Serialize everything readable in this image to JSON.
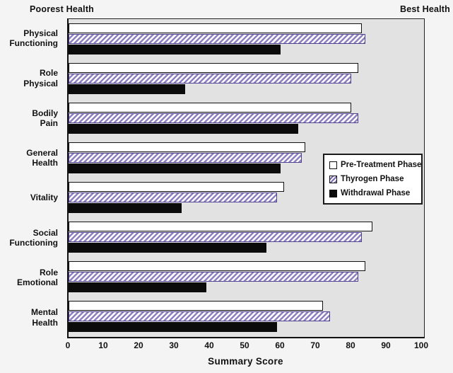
{
  "page": {
    "top_left_label": "Poorest Health",
    "top_right_label": "Best Health"
  },
  "chart_data": {
    "type": "bar",
    "orientation": "horizontal",
    "xlabel": "Summary Score",
    "xlim": [
      0,
      100
    ],
    "x_ticks": [
      0,
      10,
      20,
      30,
      40,
      50,
      60,
      70,
      80,
      90,
      100
    ],
    "grid": false,
    "legend_position": "middle-right",
    "annotations": {
      "top_left": "Poorest Health",
      "top_right": "Best Health"
    },
    "categories": [
      "Physical Functioning",
      "Role Physical",
      "Bodily Pain",
      "General Health",
      "Vitality",
      "Social Functioning",
      "Role Emotional",
      "Mental Health"
    ],
    "category_labels_display": [
      "Physical\nFunctioning",
      "Role\nPhysical",
      "Bodily\nPain",
      "General\nHealth",
      "Vitality",
      "Social\nFunctioning",
      "Role\nEmotional",
      "Mental\nHealth"
    ],
    "series": [
      {
        "name": "Pre-Treatment Phase",
        "style": "white",
        "values": [
          83,
          82,
          80,
          67,
          61,
          86,
          84,
          72
        ]
      },
      {
        "name": "Thyrogen Phase",
        "style": "hatched-purple",
        "values": [
          84,
          80,
          82,
          66,
          59,
          83,
          82,
          74
        ]
      },
      {
        "name": "Withdrawal Phase",
        "style": "black",
        "values": [
          60,
          33,
          65,
          60,
          32,
          56,
          39,
          59
        ]
      }
    ]
  },
  "colors": {
    "hatch_purple": "#8d7fc0",
    "bar_black": "#0b0b0b",
    "bar_white": "#ffffff",
    "plot_background": "#e2e2e2",
    "page_background": "#f4f4f4",
    "text": "#111111"
  }
}
